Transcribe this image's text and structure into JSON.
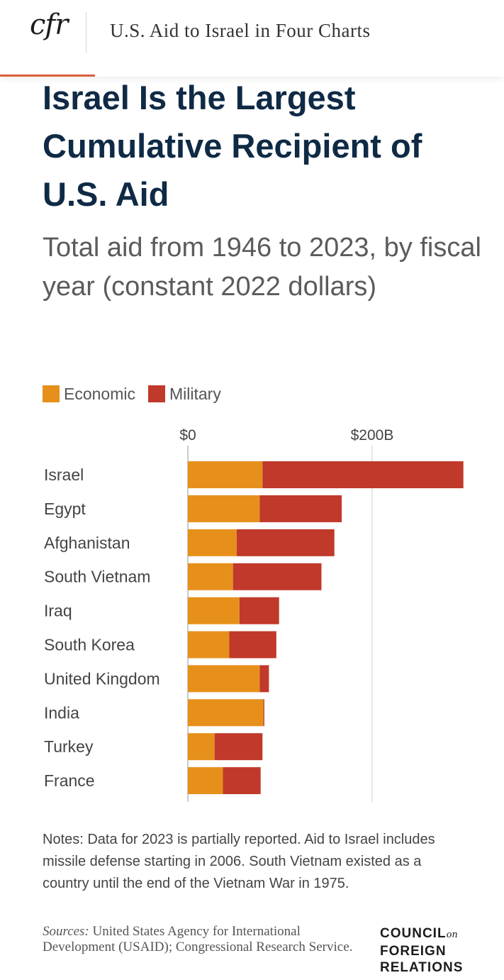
{
  "header": {
    "logo_text": "cfr",
    "article_title": "U.S. Aid to Israel in Four Charts"
  },
  "colors": {
    "economic": "#e6901b",
    "military": "#c0392b",
    "title": "#0f2a45",
    "accent": "#d9603b"
  },
  "chart_data": {
    "type": "bar",
    "orientation": "horizontal",
    "stacked": true,
    "title": "Israel Is the Largest Cumulative Recipient of U.S. Aid",
    "subtitle": "Total aid from 1946 to 2023, by fiscal year (constant 2022 dollars)",
    "x_unit": "B",
    "xlim": [
      0,
      300
    ],
    "x_ticks": [
      {
        "value": 0,
        "label": "$0"
      },
      {
        "value": 200,
        "label": "$200B"
      }
    ],
    "grid": "vertical",
    "legend_position": "top-left",
    "categories": [
      "Israel",
      "Egypt",
      "Afghanistan",
      "South Vietnam",
      "Iraq",
      "South Korea",
      "United Kingdom",
      "India",
      "Turkey",
      "France"
    ],
    "series": [
      {
        "name": "Economic",
        "color": "#e6901b",
        "values": [
          81,
          78,
          53,
          49,
          56,
          45,
          78,
          82,
          29,
          38
        ]
      },
      {
        "name": "Military",
        "color": "#c0392b",
        "values": [
          218,
          89,
          106,
          96,
          43,
          51,
          10,
          1,
          52,
          41
        ]
      }
    ]
  },
  "notes": "Notes: Data for 2023 is partially reported. Aid to Israel includes missile defense starting in 2006. South Vietnam existed as a country until the end of the Vietnam War in 1975.",
  "sources": {
    "label": "Sources:",
    "text": "United States Agency for International Development (USAID); Congressional Research Service."
  },
  "brand": {
    "line1": "COUNCIL",
    "line1_suffix": "on",
    "line2": "FOREIGN",
    "line3": "RELATIONS"
  }
}
